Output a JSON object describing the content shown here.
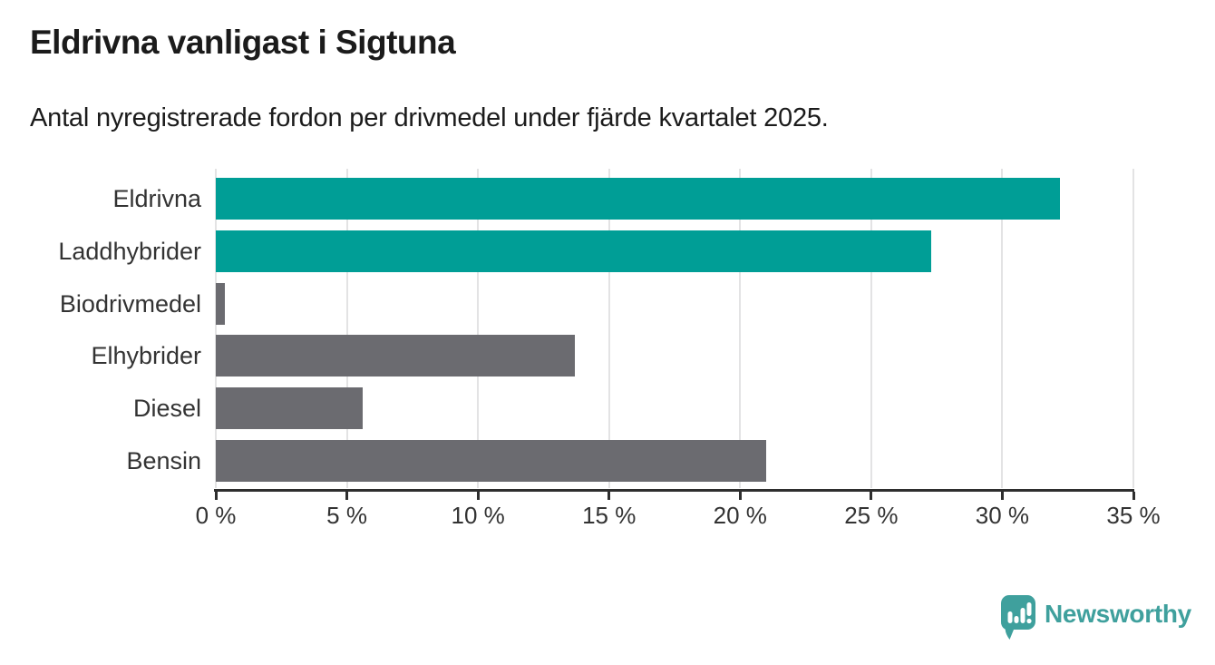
{
  "header": {
    "title": "Eldrivna vanligast i Sigtuna",
    "subtitle": "Antal nyregistrerade fordon per drivmedel under fjärde kvartalet 2025."
  },
  "chart_data": {
    "type": "bar",
    "orientation": "horizontal",
    "title": "Eldrivna vanligast i Sigtuna",
    "subtitle": "Antal nyregistrerade fordon per drivmedel under fjärde kvartalet 2025.",
    "categories": [
      "Eldrivna",
      "Laddhybrider",
      "Biodrivmedel",
      "Elhybrider",
      "Diesel",
      "Bensin"
    ],
    "values": [
      32.2,
      27.3,
      0.35,
      13.7,
      5.6,
      21.0
    ],
    "unit": "%",
    "bar_colors": [
      "#009e96",
      "#009e96",
      "#6b6b70",
      "#6b6b70",
      "#6b6b70",
      "#6b6b70"
    ],
    "highlight_color": "#009e96",
    "base_color": "#6b6b70",
    "xlim": [
      0,
      35
    ],
    "xticks": [
      0,
      5,
      10,
      15,
      20,
      25,
      30,
      35
    ],
    "xtick_labels": [
      "0 %",
      "5 %",
      "10 %",
      "15 %",
      "20 %",
      "25 %",
      "30 %",
      "35 %"
    ],
    "grid": "vertical-gridlines-on",
    "gridline_color": "#e3e3e4",
    "axis_color": "#2e2e2e",
    "label_color": "#333333"
  },
  "branding": {
    "name": "Newsworthy",
    "logo_icon": "bar-chart-speech-bubble",
    "color": "#3fa09d"
  }
}
